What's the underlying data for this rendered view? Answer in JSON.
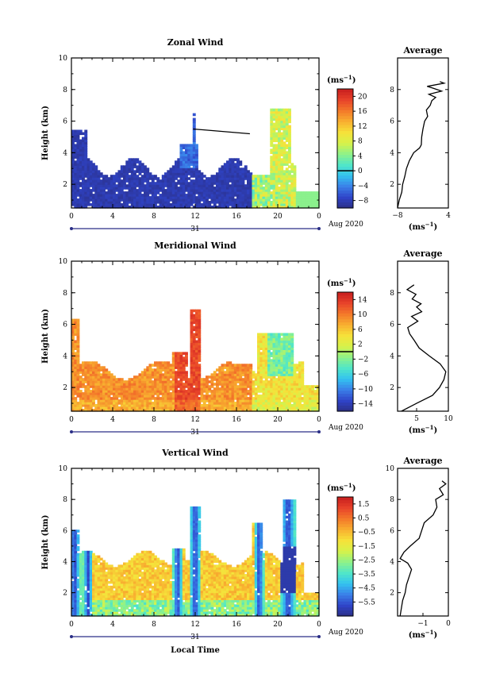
{
  "chart_data": [
    {
      "type": "heatmap",
      "title": "Zonal Wind",
      "ylabel": "Height (km)",
      "xlim": [
        0,
        24
      ],
      "ylim": [
        0.5,
        10
      ],
      "x_ticks": [
        "0",
        "4",
        "8",
        "12",
        "16",
        "20",
        "0"
      ],
      "y_ticks": [
        "2",
        "4",
        "6",
        "8",
        "10"
      ],
      "colorbar": {
        "unit": "(ms",
        "unit_exp": "−1",
        "unit_close": ")",
        "ticks": [
          "20",
          "16",
          "12",
          "8",
          "4",
          "0",
          "−4",
          "−8"
        ],
        "range": [
          -10,
          22
        ],
        "contour": 0
      },
      "average": {
        "title": "Average",
        "xlim": [
          -8,
          4
        ],
        "x_ticks": [
          "−8",
          "4"
        ],
        "y_ticks": [
          "2",
          "4",
          "6",
          "8"
        ],
        "unit": "(ms",
        "unit_exp": "−1",
        "unit_close": ")"
      },
      "date_day": "31",
      "date_label": "Aug 2020"
    },
    {
      "type": "heatmap",
      "title": "Meridional Wind",
      "ylabel": "Height (km)",
      "xlim": [
        0,
        24
      ],
      "ylim": [
        0.5,
        10
      ],
      "x_ticks": [
        "0",
        "4",
        "8",
        "12",
        "16",
        "20",
        "0"
      ],
      "y_ticks": [
        "2",
        "4",
        "6",
        "8",
        "10"
      ],
      "colorbar": {
        "unit": "(ms",
        "unit_exp": "−1",
        "unit_close": ")",
        "ticks": [
          "14",
          "10",
          "6",
          "2",
          "−2",
          "−6",
          "−10",
          "−14"
        ],
        "range": [
          -16,
          16
        ],
        "contour": 0
      },
      "average": {
        "title": "Average",
        "xlim": [
          2,
          10
        ],
        "x_ticks": [
          "5",
          "10"
        ],
        "y_ticks": [
          "2",
          "4",
          "6",
          "8"
        ],
        "unit": "(ms",
        "unit_exp": "−1",
        "unit_close": ")"
      },
      "date_day": "31",
      "date_label": "Aug 2020"
    },
    {
      "type": "heatmap",
      "title": "Vertical Wind",
      "ylabel": "Height (km)",
      "xlabel": "Local Time",
      "xlim": [
        0,
        24
      ],
      "ylim": [
        0.5,
        10
      ],
      "x_ticks": [
        "0",
        "4",
        "8",
        "12",
        "16",
        "20",
        "0"
      ],
      "y_ticks": [
        "2",
        "4",
        "6",
        "8",
        "10"
      ],
      "colorbar": {
        "unit": "(ms",
        "unit_exp": "−1",
        "unit_close": ")",
        "ticks": [
          "1.5",
          "0.5",
          "−0.5",
          "−1.5",
          "−2.5",
          "−3.5",
          "−4.5",
          "−5.5"
        ],
        "range": [
          -6.5,
          2.0
        ],
        "contour": null
      },
      "average": {
        "title": "Average",
        "xlim": [
          -2,
          0
        ],
        "x_ticks": [
          "−1",
          "0"
        ],
        "y_ticks": [
          "2",
          "4",
          "6",
          "8",
          "10"
        ],
        "unit": "(ms",
        "unit_exp": "−1",
        "unit_close": ")"
      },
      "date_day": "31",
      "date_label": "Aug 2020"
    }
  ],
  "colors": {
    "ramp": [
      "#2b2f86",
      "#2f44c8",
      "#3a7fe8",
      "#33c2f0",
      "#50e6c8",
      "#8ef28a",
      "#d6f24a",
      "#f6e23a",
      "#f8b030",
      "#f47a2a",
      "#e8432a",
      "#c81e1e"
    ]
  }
}
